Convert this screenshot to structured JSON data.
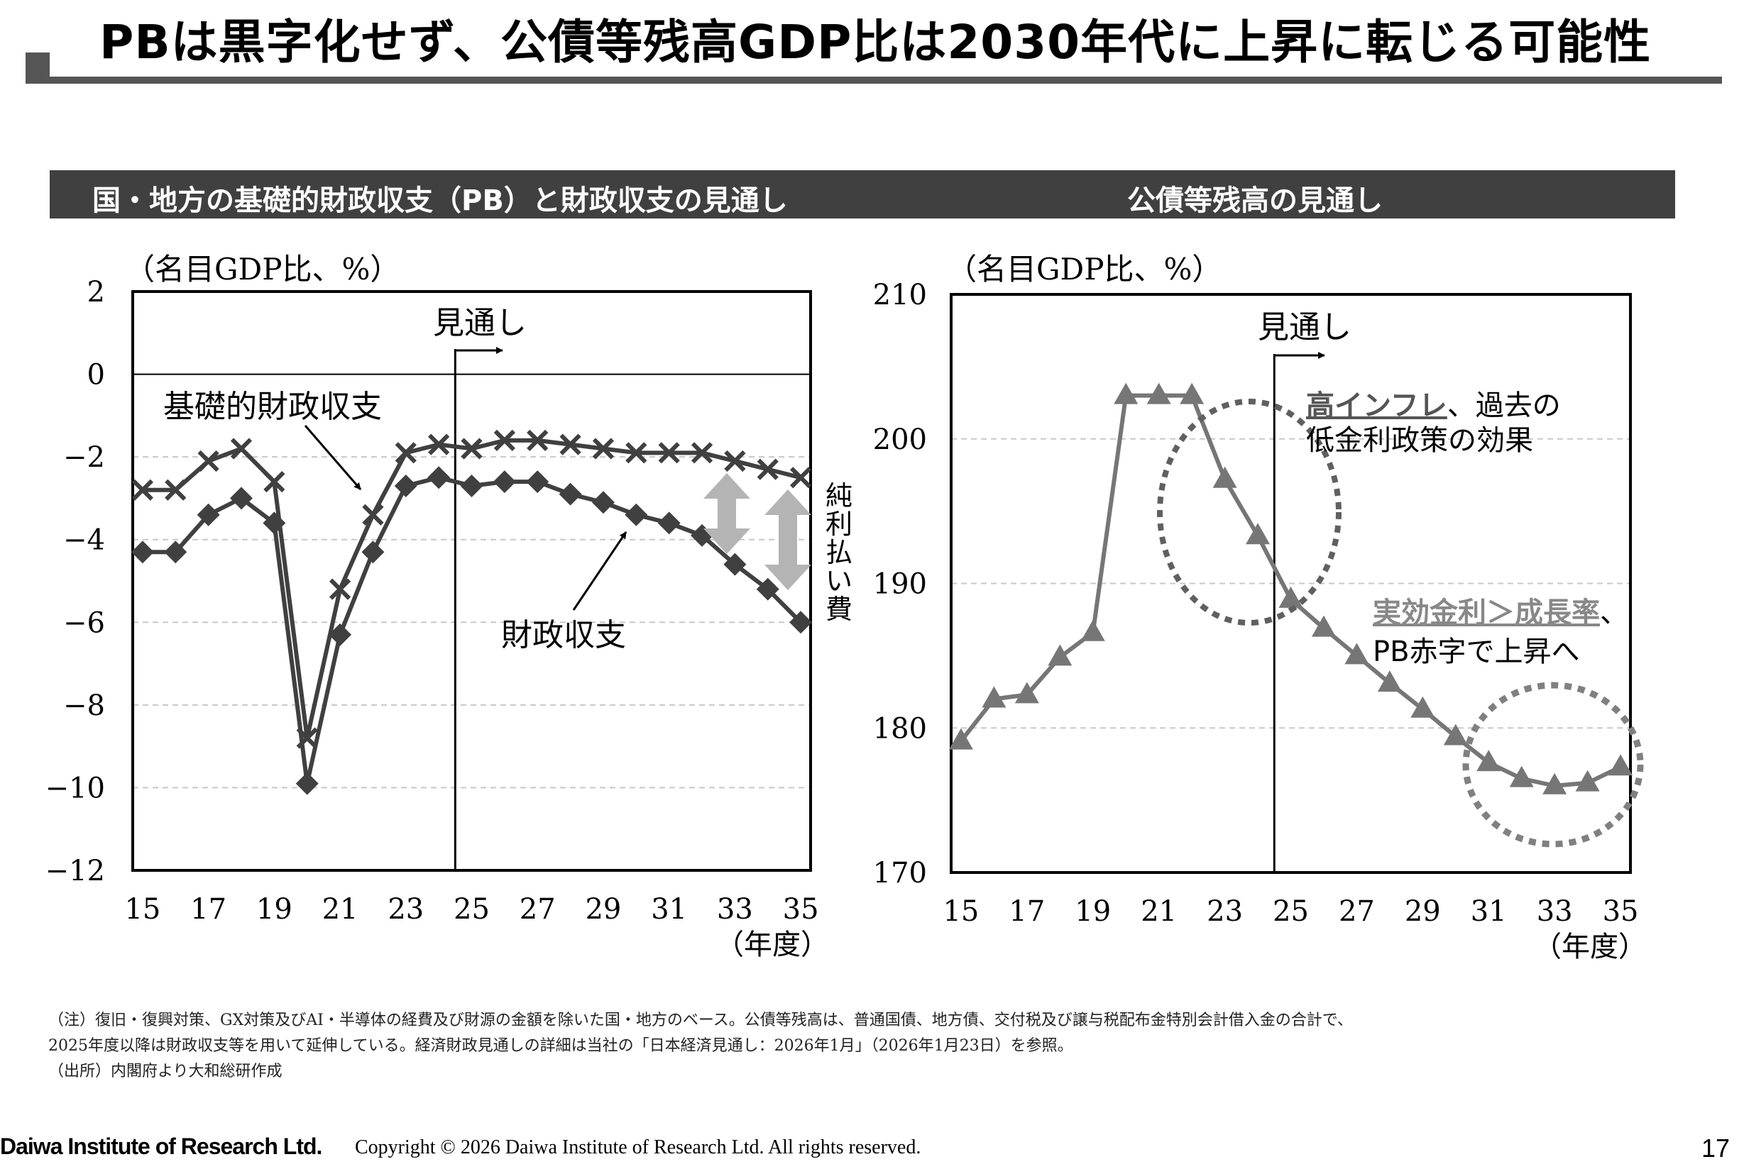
{
  "page": {
    "title": "PBは黒字化せず、公債等残高GDP比は2030年代に上昇に転じる可能性",
    "page_number": "17",
    "logo": "Daiwa Institute of Research Ltd.",
    "copyright": "Copyright © 2026 Daiwa Institute of Research Ltd. All rights reserved.",
    "notes": [
      "（注）復旧・復興対策、GX対策及びAI・半導体の経費及び財源の金額を除いた国・地方のベース。公債等残高は、普通国債、地方債、交付税及び譲与税配布金特別会計借入金の合計で、",
      "2025年度以降は財政収支等を用いて延伸している。経済財政見通しの詳細は当社の「日本経済見通し：2026年1月」（2026年1月23日）を参照。",
      "（出所）内閣府より大和総研作成"
    ]
  },
  "chart_data": [
    {
      "type": "line",
      "title": "国・地方の基礎的財政収支（PB）と財政収支の見通し",
      "unit_label": "（名目GDP比、%）",
      "xlabel": "（年度）",
      "x": [
        15,
        16,
        17,
        18,
        19,
        20,
        21,
        22,
        23,
        24,
        25,
        26,
        27,
        28,
        29,
        30,
        31,
        32,
        33,
        34,
        35
      ],
      "x_tick_labels": [
        "15",
        "17",
        "19",
        "21",
        "23",
        "25",
        "27",
        "29",
        "31",
        "33",
        "35"
      ],
      "y_tick_labels": [
        "2",
        "0",
        "−2",
        "−4",
        "−6",
        "−8",
        "−10",
        "−12"
      ],
      "ylim": [
        -12,
        2
      ],
      "grid": "horizontal dashed",
      "forecast_marker": {
        "x": 24.5,
        "label": "見通し"
      },
      "series": [
        {
          "name": "基礎的財政収支",
          "marker": "x",
          "values": [
            -2.8,
            -2.8,
            -2.1,
            -1.8,
            -2.6,
            -8.8,
            -5.2,
            -3.4,
            -1.9,
            -1.7,
            -1.8,
            -1.6,
            -1.6,
            -1.7,
            -1.8,
            -1.9,
            -1.9,
            -1.9,
            -2.1,
            -2.3,
            -2.5
          ]
        },
        {
          "name": "財政収支",
          "marker": "diamond",
          "values": [
            -4.3,
            -4.3,
            -3.4,
            -3.0,
            -3.6,
            -9.9,
            -6.3,
            -4.3,
            -2.7,
            -2.5,
            -2.7,
            -2.6,
            -2.6,
            -2.9,
            -3.1,
            -3.4,
            -3.6,
            -3.9,
            -4.6,
            -5.2,
            -6.0
          ]
        }
      ],
      "annotations": {
        "net_interest": "純利払い費"
      }
    },
    {
      "type": "line",
      "title": "公債等残高の見通し",
      "unit_label": "（名目GDP比、%）",
      "xlabel": "（年度）",
      "x": [
        15,
        16,
        17,
        18,
        19,
        20,
        21,
        22,
        23,
        24,
        25,
        26,
        27,
        28,
        29,
        30,
        31,
        32,
        33,
        34,
        35
      ],
      "x_tick_labels": [
        "15",
        "17",
        "19",
        "21",
        "23",
        "25",
        "27",
        "29",
        "31",
        "33",
        "35"
      ],
      "y_tick_labels": [
        "210",
        "200",
        "190",
        "180",
        "170"
      ],
      "ylim": [
        170,
        210
      ],
      "grid": "horizontal dashed",
      "forecast_marker": {
        "x": 24.5,
        "label": "見通し"
      },
      "series": [
        {
          "marker": "triangle",
          "values": [
            179.1,
            182.0,
            182.3,
            184.9,
            186.6,
            203.0,
            203.0,
            203.0,
            197.2,
            193.3,
            188.9,
            186.9,
            185.0,
            183.1,
            181.3,
            179.4,
            177.6,
            176.5,
            176.0,
            176.2,
            177.3
          ]
        }
      ],
      "annotations": {
        "upper_emph": "高インフレ",
        "upper_rest_1": "、過去の",
        "upper_rest_2": "低金利政策の効果",
        "lower_emph": "実効金利＞成長率",
        "lower_rest_1": "、",
        "lower_rest_2": "PB赤字で上昇へ"
      }
    }
  ],
  "colors": {
    "series_dark": "#404040",
    "series_mid": "#767676",
    "arrow_gray": "#b4b4b4",
    "bar": "#404040"
  }
}
